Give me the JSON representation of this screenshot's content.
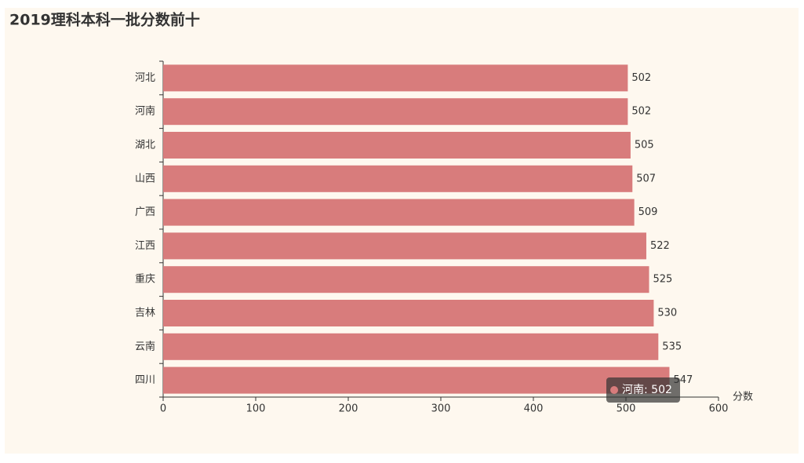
{
  "chart_data": {
    "type": "hbar",
    "title": "2019理科本科一批分数前十",
    "categories": [
      "河北",
      "河南",
      "湖北",
      "山西",
      "广西",
      "江西",
      "重庆",
      "吉林",
      "云南",
      "四川"
    ],
    "values": [
      502,
      502,
      505,
      507,
      509,
      522,
      525,
      530,
      535,
      547
    ],
    "color": "#d87c7c",
    "x_label": "分数",
    "xlim": [
      0,
      600
    ],
    "xticks": [
      0,
      100,
      200,
      300,
      400,
      500,
      600
    ],
    "tooltip": "河南: 502"
  }
}
